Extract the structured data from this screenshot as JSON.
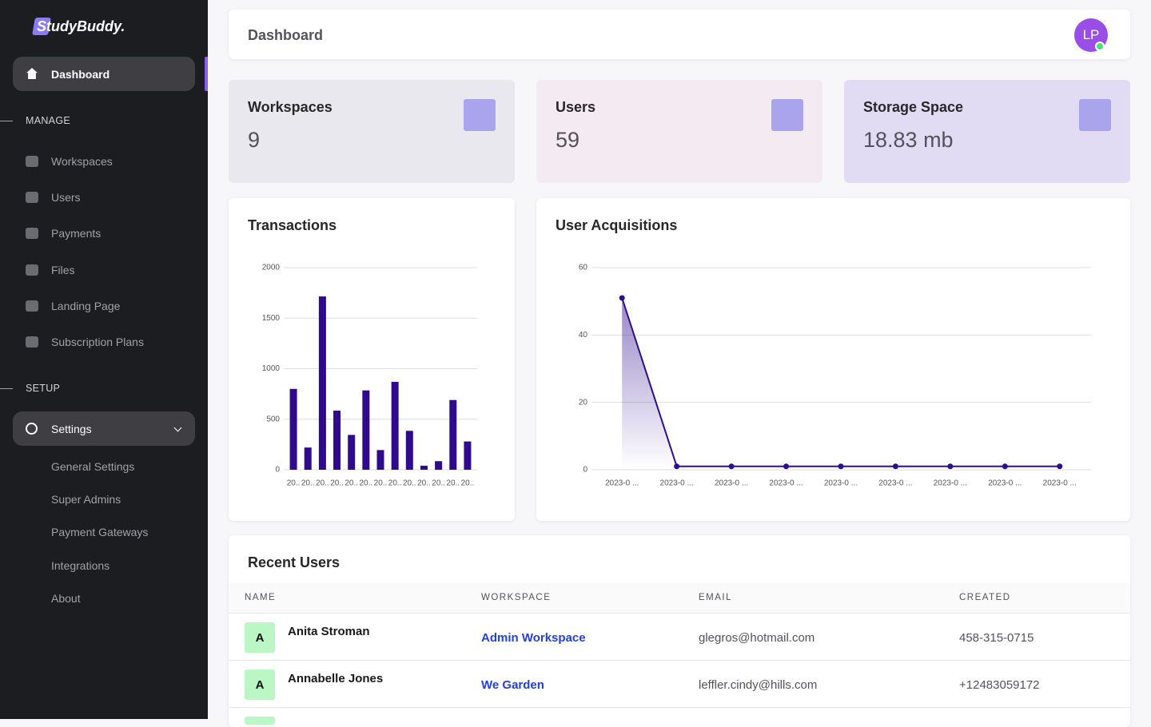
{
  "sidebar": {
    "logo": "StudyBuddy.",
    "dashboard": "Dashboard",
    "manage": {
      "heading": "MANAGE",
      "items": [
        "Workspaces",
        "Users",
        "Payments",
        "Files",
        "Landing Page",
        "Subscription Plans"
      ]
    },
    "setup": {
      "heading": "SETUP",
      "settings": "Settings",
      "items": [
        "General Settings",
        "Super Admins",
        "Payment Gateways",
        "Integrations",
        "About"
      ]
    }
  },
  "header": {
    "title": "Dashboard",
    "avatar": "LP"
  },
  "stats": [
    {
      "label": "Workspaces",
      "value": "9"
    },
    {
      "label": "Users",
      "value": "59"
    },
    {
      "label": "Storage Space",
      "value": "18.83 mb"
    }
  ],
  "chart_data": [
    {
      "type": "bar",
      "title": "Transactions",
      "categories": [
        "20..",
        "20..",
        "20..",
        "20..",
        "20..",
        "20..",
        "20..",
        "20..",
        "20..",
        "20..",
        "20..",
        "20..",
        "20.."
      ],
      "values": [
        800,
        220,
        1715,
        585,
        345,
        785,
        195,
        870,
        385,
        40,
        85,
        690,
        280
      ],
      "color": "#300a8e",
      "ylim": [
        0,
        2000
      ],
      "yticks": [
        0,
        500,
        1000,
        1500,
        2000
      ],
      "grid": true
    },
    {
      "type": "line",
      "title": "User Acquisitions",
      "categories": [
        "2023-0 ...",
        "2023-0 ...",
        "2023-0 ...",
        "2023-0 ...",
        "2023-0 ...",
        "2023-0 ...",
        "2023-0 ...",
        "2023-0 ...",
        "2023-0 ..."
      ],
      "values": [
        51,
        1,
        1,
        1,
        1,
        1,
        1,
        1,
        1
      ],
      "color": "#2e0d8f",
      "ylim": [
        0,
        60
      ],
      "yticks": [
        0,
        20,
        40,
        60
      ],
      "grid": true
    }
  ],
  "table": {
    "title": "Recent Users",
    "columns": [
      "NAME",
      "WORKSPACE",
      "EMAIL",
      "CREATED"
    ],
    "rows": [
      {
        "initial": "A",
        "name": "Anita Stroman",
        "workspace": "Admin Workspace",
        "email": "glegros@hotmail.com",
        "created": "458-315-0715"
      },
      {
        "initial": "A",
        "name": "Annabelle Jones",
        "workspace": "We Garden",
        "email": "leffler.cindy@hills.com",
        "created": "+12483059172"
      }
    ]
  }
}
